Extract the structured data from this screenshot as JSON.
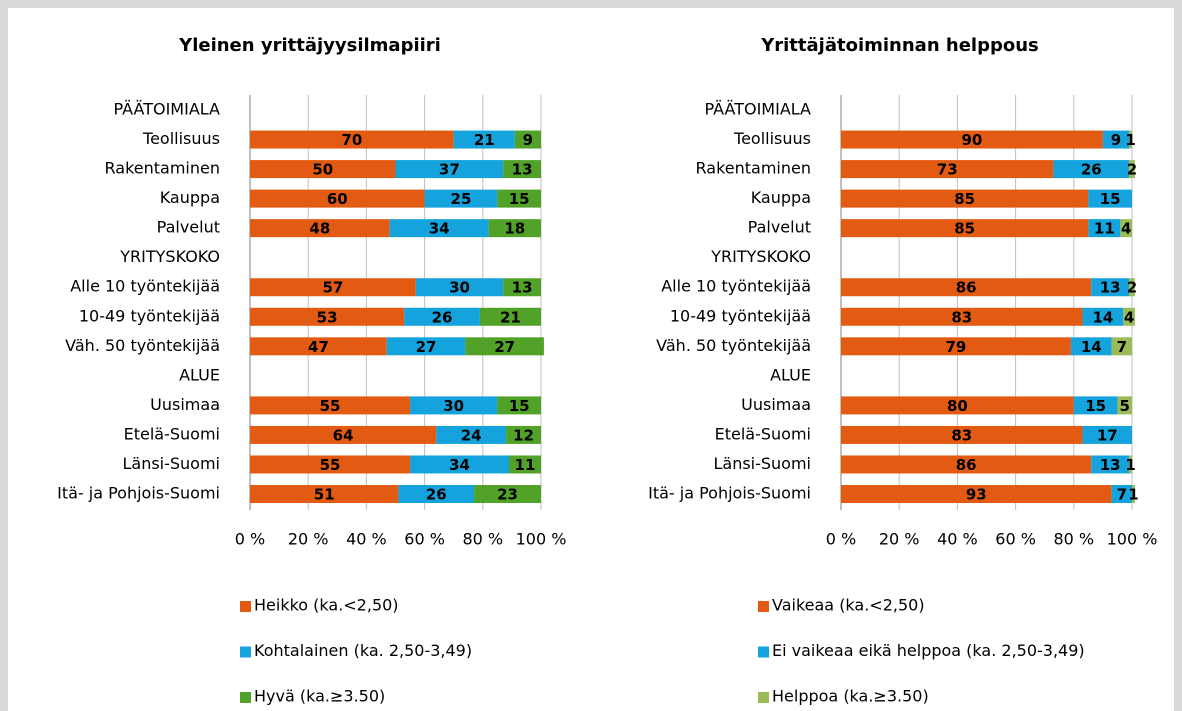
{
  "chart_data": [
    {
      "type": "bar",
      "orientation": "horizontal",
      "stacked": true,
      "title": "Yleinen yrittäjyysilmapiiri",
      "categories": [
        "PÄÄTOIMIALA",
        "Teollisuus",
        "Rakentaminen",
        "Kauppa",
        "Palvelut",
        "YRITYSKOKO",
        "Alle 10 työntekijää",
        "10-49 työntekijää",
        "Väh. 50 työntekijää",
        "ALUE",
        "Uusimaa",
        "Etelä-Suomi",
        "Länsi-Suomi",
        "Itä- ja Pohjois-Suomi"
      ],
      "series": [
        {
          "name": "Heikko (ka.<2,50)",
          "color": "#e35b12",
          "values": [
            null,
            70,
            50,
            60,
            48,
            null,
            57,
            53,
            47,
            null,
            55,
            64,
            55,
            51
          ]
        },
        {
          "name": "Kohtalainen (ka. 2,50-3,49)",
          "color": "#14a3dc",
          "values": [
            null,
            21,
            37,
            25,
            34,
            null,
            30,
            26,
            27,
            null,
            30,
            24,
            34,
            26
          ]
        },
        {
          "name": "Hyvä (ka.≥3.50)",
          "color": "#52a22a",
          "values": [
            null,
            9,
            13,
            15,
            18,
            null,
            13,
            21,
            27,
            null,
            15,
            12,
            11,
            23
          ]
        }
      ],
      "xlim": [
        0,
        100
      ],
      "xticks": [
        {
          "value": 0,
          "label": "0 %"
        },
        {
          "value": 20,
          "label": "20 %"
        },
        {
          "value": 40,
          "label": "40 %"
        },
        {
          "value": 60,
          "label": "60 %"
        },
        {
          "value": 80,
          "label": "80 %"
        },
        {
          "value": 100,
          "label": "100 %"
        }
      ],
      "grid": true,
      "legend": "bottom"
    },
    {
      "type": "bar",
      "orientation": "horizontal",
      "stacked": true,
      "title": "Yrittäjätoiminnan helppous",
      "categories": [
        "PÄÄTOIMIALA",
        "Teollisuus",
        "Rakentaminen",
        "Kauppa",
        "Palvelut",
        "YRITYSKOKO",
        "Alle 10 työntekijää",
        "10-49 työntekijää",
        "Väh. 50 työntekijää",
        "ALUE",
        "Uusimaa",
        "Etelä-Suomi",
        "Länsi-Suomi",
        "Itä- ja Pohjois-Suomi"
      ],
      "series": [
        {
          "name": "Vaikeaa (ka.<2,50)",
          "color": "#e35b12",
          "values": [
            null,
            90,
            73,
            85,
            85,
            null,
            86,
            83,
            79,
            null,
            80,
            83,
            86,
            93
          ]
        },
        {
          "name": "Ei vaikeaa eikä helppoa (ka. 2,50-3,49)",
          "color": "#14a3dc",
          "values": [
            null,
            9,
            26,
            15,
            11,
            null,
            13,
            14,
            14,
            null,
            15,
            17,
            13,
            7
          ]
        },
        {
          "name": "Helppoa (ka.≥3.50)",
          "color": "#9bbb59",
          "values": [
            null,
            1,
            2,
            null,
            4,
            null,
            2,
            4,
            7,
            null,
            5,
            null,
            1,
            1
          ]
        }
      ],
      "xlim": [
        0,
        100
      ],
      "xticks": [
        {
          "value": 0,
          "label": "0 %"
        },
        {
          "value": 20,
          "label": "20 %"
        },
        {
          "value": 40,
          "label": "40 %"
        },
        {
          "value": 60,
          "label": "60 %"
        },
        {
          "value": 80,
          "label": "80 %"
        },
        {
          "value": 100,
          "label": "100 %"
        }
      ],
      "grid": true,
      "legend": "bottom"
    }
  ]
}
